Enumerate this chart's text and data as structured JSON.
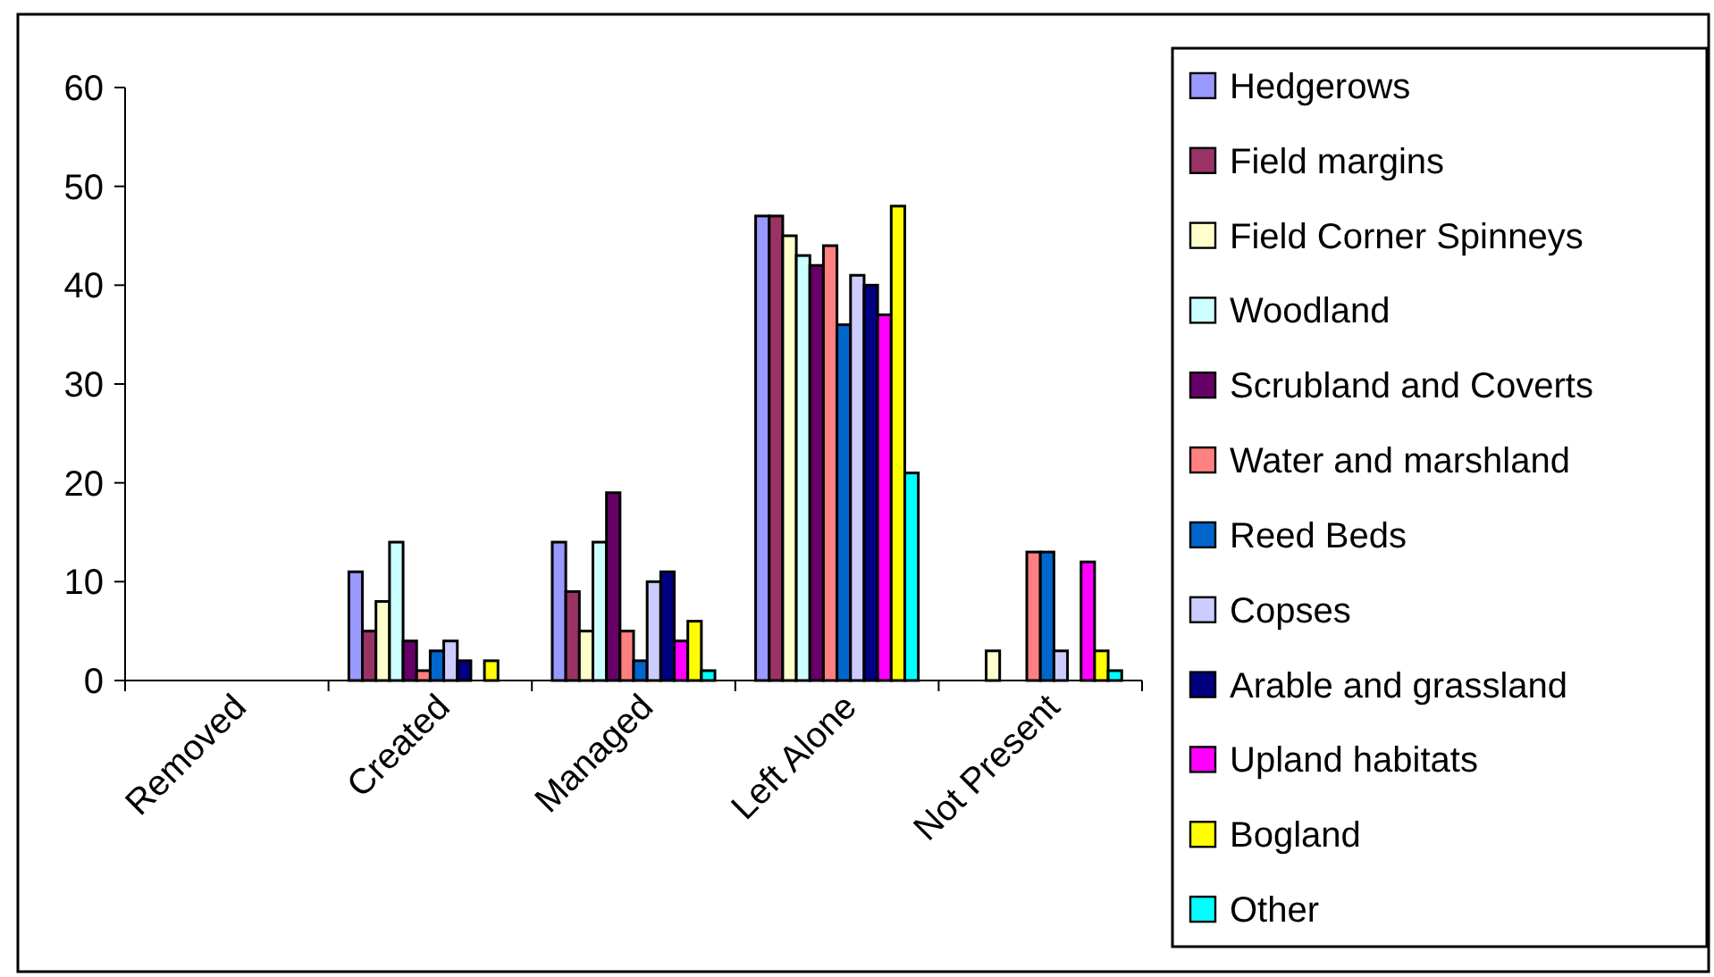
{
  "chart_data": {
    "type": "bar",
    "categories": [
      "Removed",
      "Created",
      "Managed",
      "Left Alone",
      "Not Present"
    ],
    "series": [
      {
        "name": "Hedgerows",
        "color": "#9999ff",
        "values": [
          0,
          11,
          14,
          47,
          0
        ]
      },
      {
        "name": "Field margins",
        "color": "#993366",
        "values": [
          0,
          5,
          9,
          47,
          0
        ]
      },
      {
        "name": "Field Corner Spinneys",
        "color": "#ffffcc",
        "values": [
          0,
          8,
          5,
          45,
          3
        ]
      },
      {
        "name": "Woodland",
        "color": "#ccffff",
        "values": [
          0,
          14,
          14,
          43,
          0
        ]
      },
      {
        "name": "Scrubland and Coverts",
        "color": "#660066",
        "values": [
          0,
          4,
          19,
          42,
          0
        ]
      },
      {
        "name": "Water and marshland",
        "color": "#ff8080",
        "values": [
          0,
          1,
          5,
          44,
          13
        ]
      },
      {
        "name": "Reed Beds",
        "color": "#0066cc",
        "values": [
          0,
          3,
          2,
          36,
          13
        ]
      },
      {
        "name": "Copses",
        "color": "#ccccff",
        "values": [
          0,
          4,
          10,
          41,
          3
        ]
      },
      {
        "name": "Arable and grassland",
        "color": "#000080",
        "values": [
          0,
          2,
          11,
          40,
          0
        ]
      },
      {
        "name": "Upland habitats",
        "color": "#ff00ff",
        "values": [
          0,
          0,
          4,
          37,
          12
        ]
      },
      {
        "name": "Bogland",
        "color": "#ffff00",
        "values": [
          0,
          2,
          6,
          48,
          3
        ]
      },
      {
        "name": "Other",
        "color": "#00ffff",
        "values": [
          0,
          0,
          1,
          21,
          1
        ]
      }
    ],
    "ylim": [
      0,
      60
    ],
    "yticks": [
      0,
      10,
      20,
      30,
      40,
      50,
      60
    ],
    "grid": false,
    "legend": "right"
  }
}
